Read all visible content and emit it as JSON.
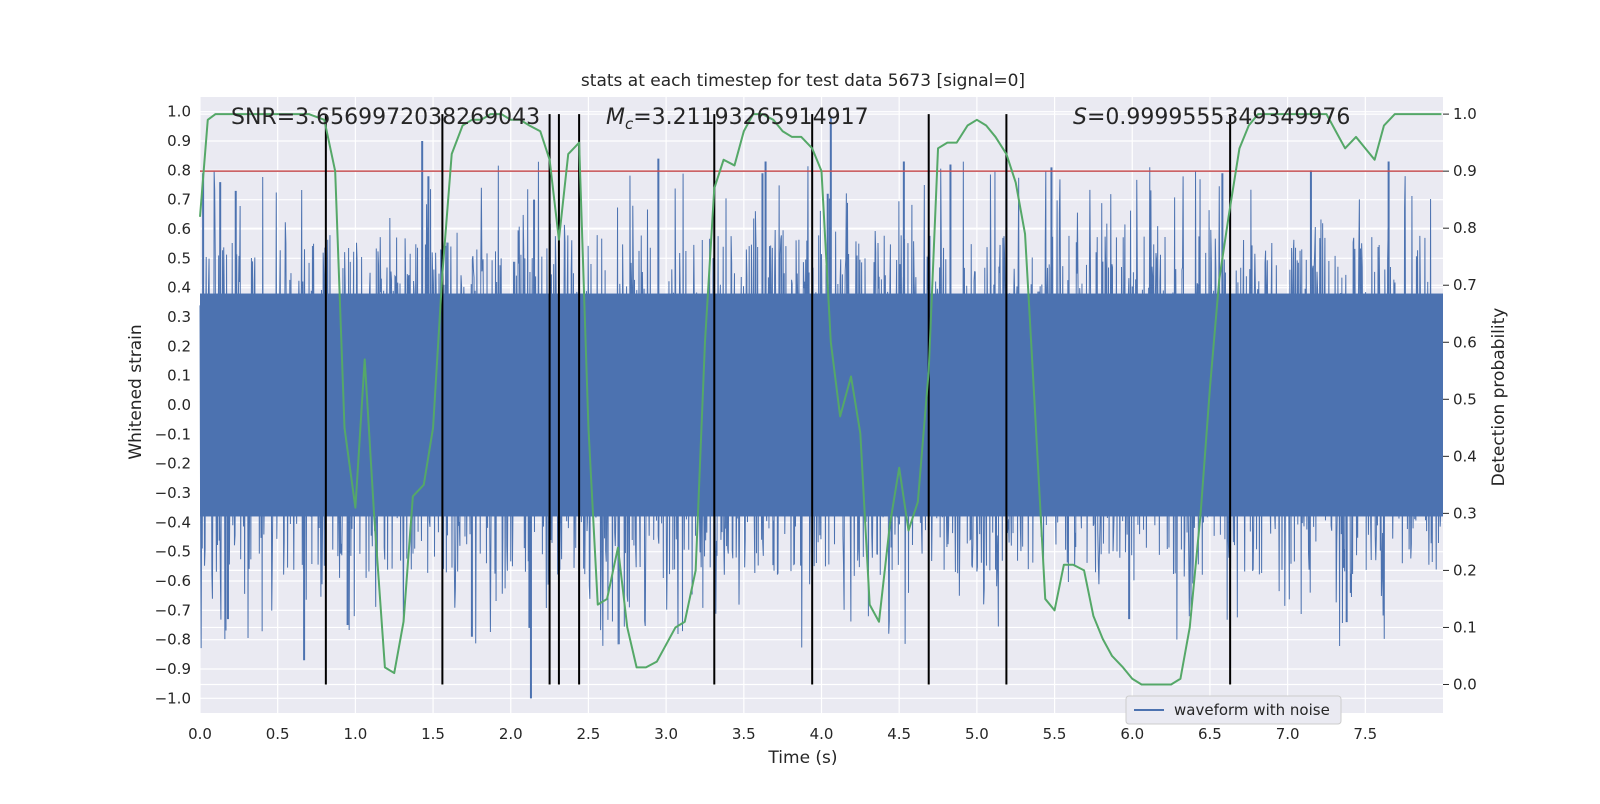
{
  "chart_data": {
    "type": "line",
    "title": "stats at each timestep for test data 5673 [signal=0]",
    "xlabel": "Time (s)",
    "ylabel_left": "Whitened strain",
    "ylabel_right": "Detection probability",
    "xlim": [
      0.0,
      8.0
    ],
    "ylim_left": [
      -1.05,
      1.05
    ],
    "ylim_right": [
      -0.05,
      1.03
    ],
    "x_ticks": [
      "0.0",
      "0.5",
      "1.0",
      "1.5",
      "2.0",
      "2.5",
      "3.0",
      "3.5",
      "4.0",
      "4.5",
      "5.0",
      "5.5",
      "6.0",
      "6.5",
      "7.0",
      "7.5"
    ],
    "y_left_ticks": [
      "1.0",
      "0.9",
      "0.8",
      "0.7",
      "0.6",
      "0.5",
      "0.4",
      "0.3",
      "0.2",
      "0.1",
      "0.0",
      "-0.1",
      "-0.2",
      "-0.3",
      "-0.4",
      "-0.5",
      "-0.6",
      "-0.7",
      "-0.8",
      "-0.9",
      "-1.0"
    ],
    "y_right_ticks": [
      "1.0",
      "0.9",
      "0.8",
      "0.7",
      "0.6",
      "0.5",
      "0.4",
      "0.3",
      "0.2",
      "0.1",
      "0.0"
    ],
    "grid": true,
    "legend_position": "lower-right",
    "legend": [
      "waveform with noise"
    ],
    "annotations": {
      "snr": "SNR=3.6569972038269043",
      "mc": "=3.21193265914917",
      "mc_symbol": "M",
      "mc_sub": "c",
      "s": "=0.9999555349349976",
      "s_symbol": "S"
    },
    "threshold_right": 0.9,
    "vertical_lines_x": [
      0.81,
      1.56,
      2.25,
      2.31,
      2.44,
      3.31,
      3.94,
      4.69,
      5.19,
      6.63
    ],
    "waveform": {
      "name": "waveform with noise",
      "color": "#4c72b0",
      "duration_s": 8.0,
      "core_amplitude": 0.38,
      "peaks": [
        {
          "x": 0.02,
          "y": 0.79
        },
        {
          "x": 0.13,
          "y": 0.76
        },
        {
          "x": 0.18,
          "y": -0.73
        },
        {
          "x": 0.23,
          "y": 0.73
        },
        {
          "x": 0.67,
          "y": -0.87
        },
        {
          "x": 0.95,
          "y": -0.75
        },
        {
          "x": 1.43,
          "y": 0.9
        },
        {
          "x": 1.47,
          "y": 0.78
        },
        {
          "x": 1.75,
          "y": -0.79
        },
        {
          "x": 2.13,
          "y": -1.0
        },
        {
          "x": 2.15,
          "y": 0.7
        },
        {
          "x": 2.12,
          "y": -0.76
        },
        {
          "x": 2.95,
          "y": 0.84
        },
        {
          "x": 3.62,
          "y": 0.79
        },
        {
          "x": 3.64,
          "y": 0.83
        },
        {
          "x": 4.06,
          "y": 0.98
        },
        {
          "x": 4.04,
          "y": 0.72
        },
        {
          "x": 4.53,
          "y": 0.83
        },
        {
          "x": 4.83,
          "y": 0.82
        },
        {
          "x": 5.19,
          "y": 0.83
        },
        {
          "x": 5.48,
          "y": 0.81
        },
        {
          "x": 5.98,
          "y": -0.73
        },
        {
          "x": 6.58,
          "y": 0.79
        },
        {
          "x": 7.15,
          "y": 0.8
        },
        {
          "x": 7.38,
          "y": -0.74
        },
        {
          "x": 7.65,
          "y": 0.83
        }
      ]
    },
    "probability": {
      "name": "detection probability",
      "color": "#55a868",
      "x": [
        0.0,
        0.05,
        0.1,
        0.2,
        0.3,
        0.4,
        0.5,
        0.6,
        0.7,
        0.8,
        0.87,
        0.93,
        1.0,
        1.06,
        1.12,
        1.19,
        1.25,
        1.31,
        1.37,
        1.44,
        1.5,
        1.56,
        1.62,
        1.69,
        1.75,
        1.81,
        1.87,
        1.94,
        2.0,
        2.06,
        2.12,
        2.19,
        2.25,
        2.31,
        2.37,
        2.44,
        2.5,
        2.56,
        2.62,
        2.69,
        2.75,
        2.81,
        2.87,
        2.94,
        3.0,
        3.06,
        3.12,
        3.19,
        3.25,
        3.31,
        3.37,
        3.44,
        3.5,
        3.56,
        3.62,
        3.69,
        3.75,
        3.81,
        3.87,
        3.94,
        4.0,
        4.06,
        4.12,
        4.19,
        4.25,
        4.31,
        4.37,
        4.44,
        4.5,
        4.56,
        4.62,
        4.69,
        4.75,
        4.81,
        4.87,
        4.94,
        5.0,
        5.06,
        5.12,
        5.19,
        5.25,
        5.31,
        5.37,
        5.44,
        5.5,
        5.56,
        5.62,
        5.69,
        5.75,
        5.81,
        5.87,
        5.94,
        6.0,
        6.06,
        6.12,
        6.19,
        6.25,
        6.31,
        6.37,
        6.44,
        6.5,
        6.56,
        6.62,
        6.69,
        6.75,
        6.81,
        6.87,
        6.94,
        7.0,
        7.06,
        7.12,
        7.19,
        7.25,
        7.31,
        7.37,
        7.44,
        7.5,
        7.56,
        7.62,
        7.69,
        7.75,
        7.81,
        7.87,
        7.94,
        7.99
      ],
      "y": [
        0.82,
        0.99,
        1.0,
        1.0,
        1.0,
        1.0,
        1.0,
        1.0,
        1.0,
        0.99,
        0.9,
        0.45,
        0.31,
        0.57,
        0.3,
        0.03,
        0.02,
        0.11,
        0.33,
        0.35,
        0.45,
        0.72,
        0.93,
        0.98,
        0.99,
        0.99,
        1.0,
        1.0,
        0.99,
        0.99,
        0.98,
        0.97,
        0.92,
        0.78,
        0.93,
        0.95,
        0.45,
        0.14,
        0.15,
        0.24,
        0.1,
        0.03,
        0.03,
        0.04,
        0.07,
        0.1,
        0.11,
        0.2,
        0.6,
        0.87,
        0.92,
        0.91,
        0.97,
        1.0,
        1.0,
        0.99,
        0.97,
        0.96,
        0.96,
        0.94,
        0.9,
        0.6,
        0.47,
        0.54,
        0.44,
        0.14,
        0.11,
        0.28,
        0.38,
        0.27,
        0.32,
        0.55,
        0.94,
        0.95,
        0.95,
        0.98,
        0.99,
        0.98,
        0.96,
        0.93,
        0.88,
        0.79,
        0.5,
        0.15,
        0.13,
        0.21,
        0.21,
        0.2,
        0.12,
        0.08,
        0.05,
        0.03,
        0.01,
        0.0,
        0.0,
        0.0,
        0.0,
        0.01,
        0.1,
        0.3,
        0.52,
        0.71,
        0.82,
        0.94,
        0.98,
        1.0,
        1.0,
        1.0,
        1.0,
        1.0,
        1.0,
        1.0,
        1.0,
        0.97,
        0.94,
        0.96,
        0.94,
        0.92,
        0.98,
        1.0,
        1.0,
        1.0,
        1.0,
        1.0,
        1.0
      ]
    },
    "colors": {
      "plot_bg": "#eaeaf2",
      "grid": "#ffffff",
      "threshold": "#c44e52",
      "vline": "#000000"
    }
  }
}
